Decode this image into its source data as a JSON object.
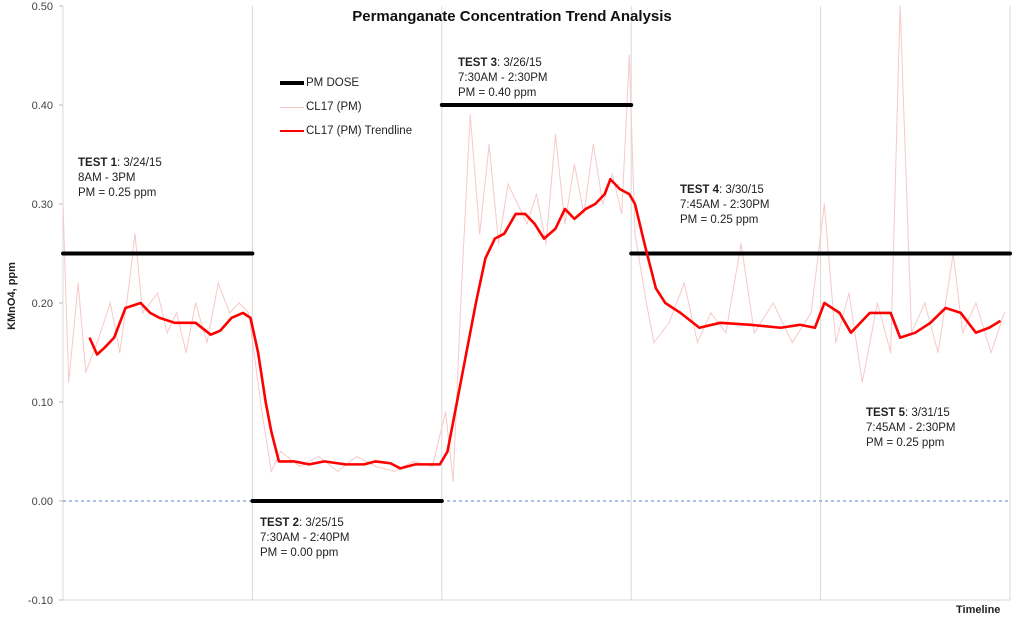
{
  "chart_data": {
    "type": "line",
    "title": "Permanganate Concentration Trend Analysis",
    "xlabel": "Timeline",
    "ylabel": "KMnO4, ppm",
    "xlim": [
      0,
      5
    ],
    "ylim": [
      -0.1,
      0.5
    ],
    "yticks": [
      "0.50",
      "0.40",
      "0.30",
      "0.20",
      "0.10",
      "0.00",
      "-0.10"
    ],
    "grid": "vertical",
    "legend_position": "top-left-center",
    "legend": [
      "PM DOSE",
      "CL17 (PM)",
      "CL17 (PM) Trendline"
    ],
    "colors": {
      "dose": "#000000",
      "raw": "#f6c9c9",
      "trend": "#ff0000",
      "zero_line": "#5b8ac9",
      "grid": "#d9d9d9"
    },
    "series": [
      {
        "name": "PM DOSE",
        "segments": [
          [
            0,
            1,
            0.25
          ],
          [
            1,
            2,
            0.0
          ],
          [
            2,
            3,
            0.4
          ],
          [
            3,
            5,
            0.25
          ]
        ]
      },
      {
        "name": "CL17 (PM)",
        "points": [
          [
            0,
            0.3
          ],
          [
            0.03,
            0.12
          ],
          [
            0.08,
            0.22
          ],
          [
            0.12,
            0.13
          ],
          [
            0.18,
            0.16
          ],
          [
            0.25,
            0.2
          ],
          [
            0.3,
            0.15
          ],
          [
            0.35,
            0.22
          ],
          [
            0.38,
            0.27
          ],
          [
            0.42,
            0.19
          ],
          [
            0.5,
            0.21
          ],
          [
            0.55,
            0.17
          ],
          [
            0.6,
            0.19
          ],
          [
            0.65,
            0.15
          ],
          [
            0.7,
            0.2
          ],
          [
            0.76,
            0.16
          ],
          [
            0.82,
            0.22
          ],
          [
            0.88,
            0.19
          ],
          [
            0.93,
            0.2
          ],
          [
            0.98,
            0.19
          ],
          [
            1.05,
            0.09
          ],
          [
            1.1,
            0.03
          ],
          [
            1.15,
            0.05
          ],
          [
            1.25,
            0.035
          ],
          [
            1.35,
            0.045
          ],
          [
            1.45,
            0.03
          ],
          [
            1.55,
            0.045
          ],
          [
            1.65,
            0.035
          ],
          [
            1.75,
            0.03
          ],
          [
            1.85,
            0.04
          ],
          [
            1.95,
            0.035
          ],
          [
            2.02,
            0.09
          ],
          [
            2.06,
            0.02
          ],
          [
            2.1,
            0.2
          ],
          [
            2.15,
            0.39
          ],
          [
            2.2,
            0.27
          ],
          [
            2.25,
            0.36
          ],
          [
            2.3,
            0.26
          ],
          [
            2.35,
            0.32
          ],
          [
            2.4,
            0.3
          ],
          [
            2.45,
            0.28
          ],
          [
            2.5,
            0.31
          ],
          [
            2.55,
            0.26
          ],
          [
            2.6,
            0.37
          ],
          [
            2.65,
            0.28
          ],
          [
            2.7,
            0.34
          ],
          [
            2.75,
            0.29
          ],
          [
            2.8,
            0.36
          ],
          [
            2.85,
            0.3
          ],
          [
            2.9,
            0.33
          ],
          [
            2.95,
            0.29
          ],
          [
            2.99,
            0.45
          ],
          [
            3.02,
            0.27
          ],
          [
            3.08,
            0.2
          ],
          [
            3.12,
            0.16
          ],
          [
            3.2,
            0.18
          ],
          [
            3.28,
            0.22
          ],
          [
            3.35,
            0.16
          ],
          [
            3.42,
            0.19
          ],
          [
            3.5,
            0.17
          ],
          [
            3.58,
            0.26
          ],
          [
            3.65,
            0.17
          ],
          [
            3.75,
            0.2
          ],
          [
            3.85,
            0.16
          ],
          [
            3.95,
            0.19
          ],
          [
            4.02,
            0.3
          ],
          [
            4.08,
            0.16
          ],
          [
            4.15,
            0.21
          ],
          [
            4.22,
            0.12
          ],
          [
            4.3,
            0.2
          ],
          [
            4.37,
            0.15
          ],
          [
            4.42,
            0.5
          ],
          [
            4.48,
            0.17
          ],
          [
            4.55,
            0.2
          ],
          [
            4.62,
            0.15
          ],
          [
            4.7,
            0.25
          ],
          [
            4.75,
            0.17
          ],
          [
            4.82,
            0.2
          ],
          [
            4.9,
            0.15
          ],
          [
            4.97,
            0.19
          ]
        ]
      },
      {
        "name": "CL17 (PM) Trendline",
        "points": [
          [
            0.14,
            0.165
          ],
          [
            0.18,
            0.148
          ],
          [
            0.22,
            0.155
          ],
          [
            0.27,
            0.165
          ],
          [
            0.33,
            0.195
          ],
          [
            0.41,
            0.2
          ],
          [
            0.46,
            0.19
          ],
          [
            0.51,
            0.185
          ],
          [
            0.59,
            0.18
          ],
          [
            0.7,
            0.18
          ],
          [
            0.78,
            0.168
          ],
          [
            0.83,
            0.172
          ],
          [
            0.89,
            0.185
          ],
          [
            0.95,
            0.19
          ],
          [
            0.99,
            0.185
          ],
          [
            1.03,
            0.15
          ],
          [
            1.07,
            0.1
          ],
          [
            1.1,
            0.07
          ],
          [
            1.14,
            0.04
          ],
          [
            1.22,
            0.04
          ],
          [
            1.3,
            0.037
          ],
          [
            1.38,
            0.04
          ],
          [
            1.49,
            0.037
          ],
          [
            1.59,
            0.037
          ],
          [
            1.65,
            0.04
          ],
          [
            1.73,
            0.038
          ],
          [
            1.78,
            0.033
          ],
          [
            1.86,
            0.037
          ],
          [
            1.99,
            0.037
          ],
          [
            2.03,
            0.05
          ],
          [
            2.1,
            0.12
          ],
          [
            2.18,
            0.2
          ],
          [
            2.23,
            0.245
          ],
          [
            2.28,
            0.265
          ],
          [
            2.33,
            0.27
          ],
          [
            2.39,
            0.29
          ],
          [
            2.44,
            0.29
          ],
          [
            2.49,
            0.28
          ],
          [
            2.54,
            0.265
          ],
          [
            2.6,
            0.275
          ],
          [
            2.65,
            0.295
          ],
          [
            2.7,
            0.285
          ],
          [
            2.76,
            0.295
          ],
          [
            2.81,
            0.3
          ],
          [
            2.86,
            0.31
          ],
          [
            2.89,
            0.325
          ],
          [
            2.94,
            0.315
          ],
          [
            2.99,
            0.31
          ],
          [
            3.02,
            0.3
          ],
          [
            3.07,
            0.26
          ],
          [
            3.13,
            0.215
          ],
          [
            3.18,
            0.2
          ],
          [
            3.26,
            0.19
          ],
          [
            3.36,
            0.175
          ],
          [
            3.47,
            0.18
          ],
          [
            3.63,
            0.178
          ],
          [
            3.79,
            0.175
          ],
          [
            3.89,
            0.178
          ],
          [
            3.97,
            0.175
          ],
          [
            4.02,
            0.2
          ],
          [
            4.1,
            0.19
          ],
          [
            4.16,
            0.17
          ],
          [
            4.26,
            0.19
          ],
          [
            4.37,
            0.19
          ],
          [
            4.42,
            0.165
          ],
          [
            4.5,
            0.17
          ],
          [
            4.58,
            0.18
          ],
          [
            4.66,
            0.195
          ],
          [
            4.74,
            0.19
          ],
          [
            4.82,
            0.17
          ],
          [
            4.89,
            0.175
          ],
          [
            4.95,
            0.182
          ]
        ]
      }
    ],
    "annotations": [
      {
        "label": "TEST 1",
        "date": ": 3/24/15",
        "time": "8AM - 3PM",
        "dose": "PM = 0.25 ppm"
      },
      {
        "label": "TEST 2",
        "date": ": 3/25/15",
        "time": "7:30AM - 2:40PM",
        "dose": "PM = 0.00 ppm"
      },
      {
        "label": "TEST 3",
        "date": ": 3/26/15",
        "time": "7:30AM - 2:30PM",
        "dose": "PM = 0.40 ppm"
      },
      {
        "label": "TEST 4",
        "date": ": 3/30/15",
        "time": "7:45AM - 2:30PM",
        "dose": "PM = 0.25 ppm"
      },
      {
        "label": "TEST 5",
        "date": ": 3/31/15",
        "time": "7:45AM - 2:30PM",
        "dose": "PM = 0.25 ppm"
      }
    ]
  }
}
